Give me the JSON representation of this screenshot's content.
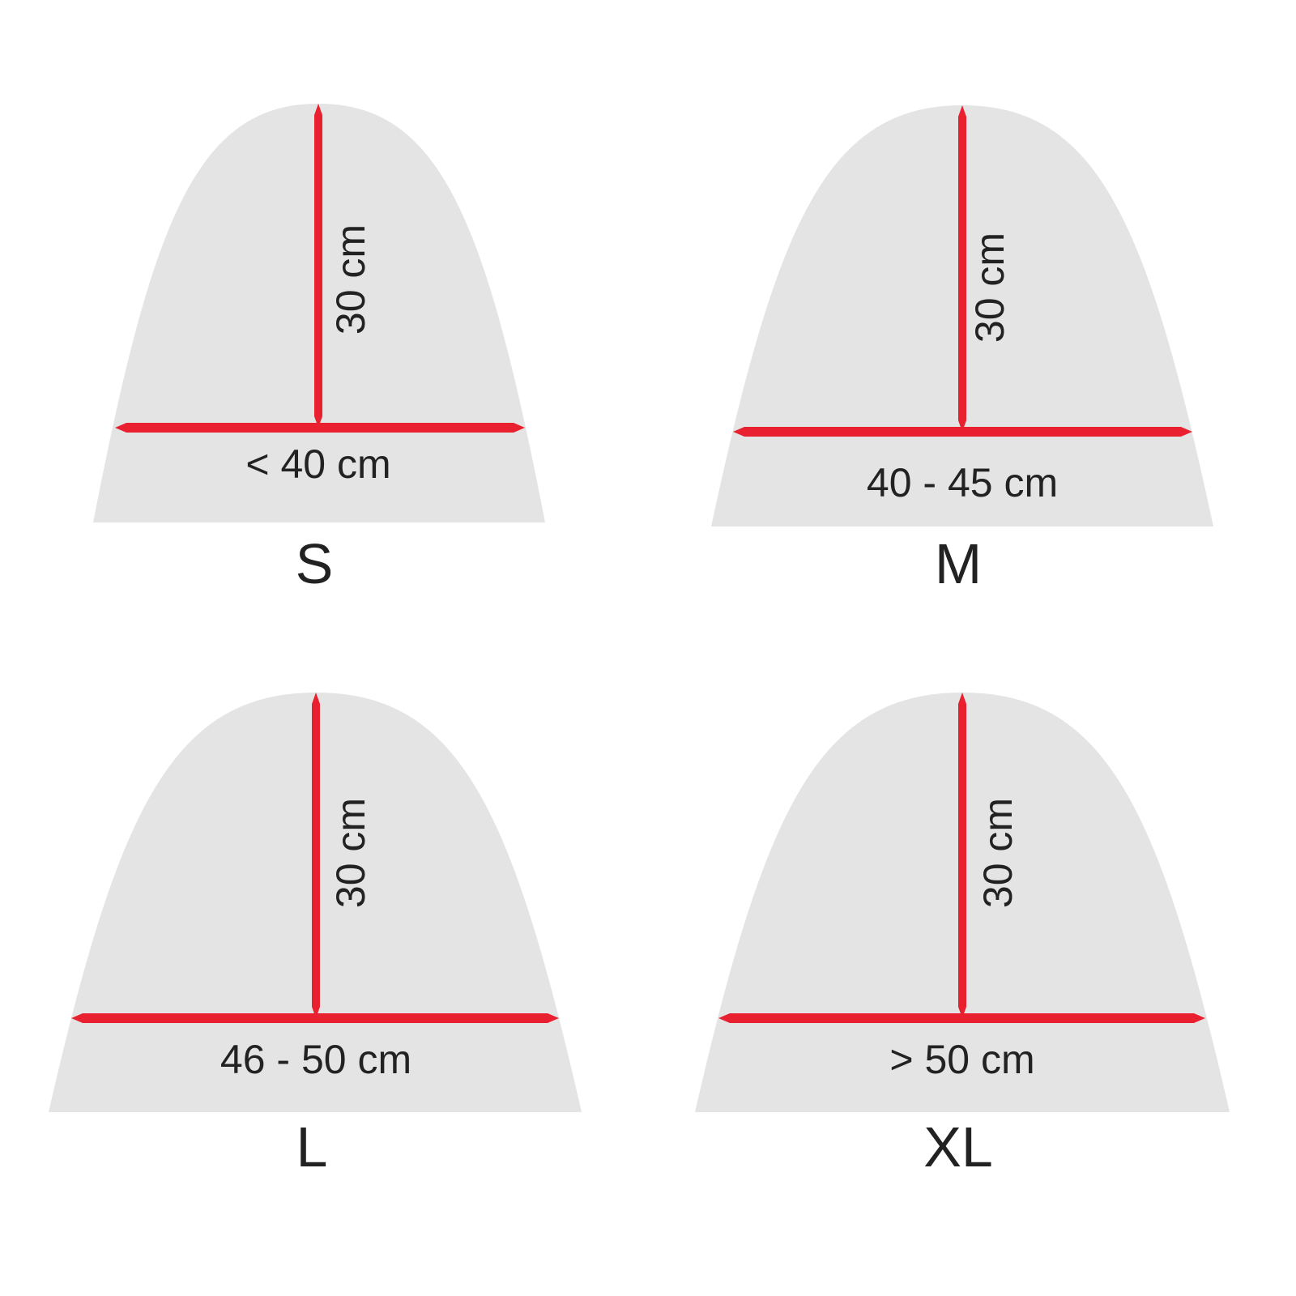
{
  "colors": {
    "shape_fill": "#e4e4e4",
    "measure_line": "#e8202f",
    "text": "#222222"
  },
  "sizes": [
    {
      "size_label": "S",
      "height_label": "30 cm",
      "width_label": "< 40 cm"
    },
    {
      "size_label": "M",
      "height_label": "30 cm",
      "width_label": "40 - 45 cm"
    },
    {
      "size_label": "L",
      "height_label": "30 cm",
      "width_label": "46 - 50 cm"
    },
    {
      "size_label": "XL",
      "height_label": "30 cm",
      "width_label": "> 50 cm"
    }
  ]
}
